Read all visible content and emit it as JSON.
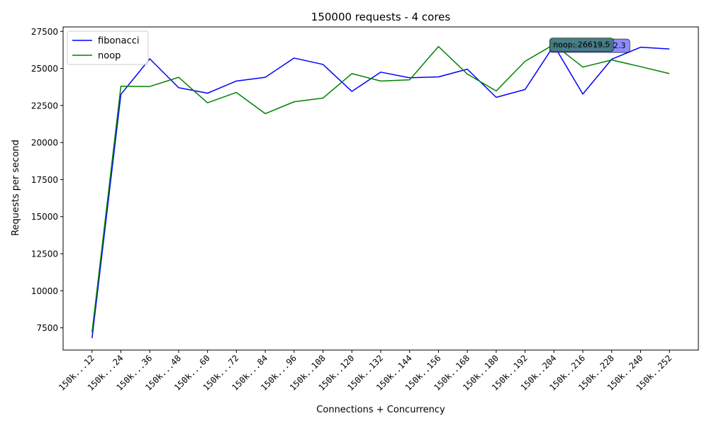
{
  "chart_data": {
    "type": "line",
    "title": "150000 requests - 4 cores",
    "xlabel": "Connections + Concurrency",
    "ylabel": "Requests per second",
    "categories": [
      "150k...12",
      "150k...24",
      "150k...36",
      "150k...48",
      "150k...60",
      "150k...72",
      "150k...84",
      "150k...96",
      "150k..108",
      "150k..120",
      "150k..132",
      "150k..144",
      "150k..156",
      "150k..168",
      "150k..180",
      "150k..192",
      "150k..204",
      "150k..216",
      "150k..228",
      "150k..240",
      "150k..252"
    ],
    "ylim": [
      6000,
      27800
    ],
    "yticks": [
      7500,
      10000,
      12500,
      15000,
      17500,
      20000,
      22500,
      25000,
      27500
    ],
    "ytick_labels": [
      "7500",
      "10000",
      "12500",
      "15000",
      "17500",
      "20000",
      "22500",
      "25000",
      "27500"
    ],
    "grid": false,
    "legend_position": "upper-left",
    "series": [
      {
        "name": "fibonacci",
        "color": "#0000ff",
        "values": [
          6800,
          23250,
          25650,
          23700,
          23330,
          24150,
          24400,
          25700,
          25270,
          23450,
          24750,
          24370,
          24430,
          24950,
          23050,
          23580,
          26552.3,
          23270,
          25620,
          26430,
          26310
        ]
      },
      {
        "name": "noop",
        "color": "#008000",
        "values": [
          7200,
          23800,
          23780,
          24400,
          22680,
          23380,
          21950,
          22750,
          23000,
          24650,
          24150,
          24230,
          26480,
          24620,
          23480,
          25480,
          26619.5,
          25090,
          25570,
          25120,
          24650
        ]
      }
    ],
    "annotations": [
      {
        "series": "fibonacci",
        "text": "fibonacci: 26552.3",
        "color": "#8080ff"
      },
      {
        "series": "noop",
        "text": "noop: 26619.5",
        "color": "#3a7a6e"
      }
    ]
  }
}
